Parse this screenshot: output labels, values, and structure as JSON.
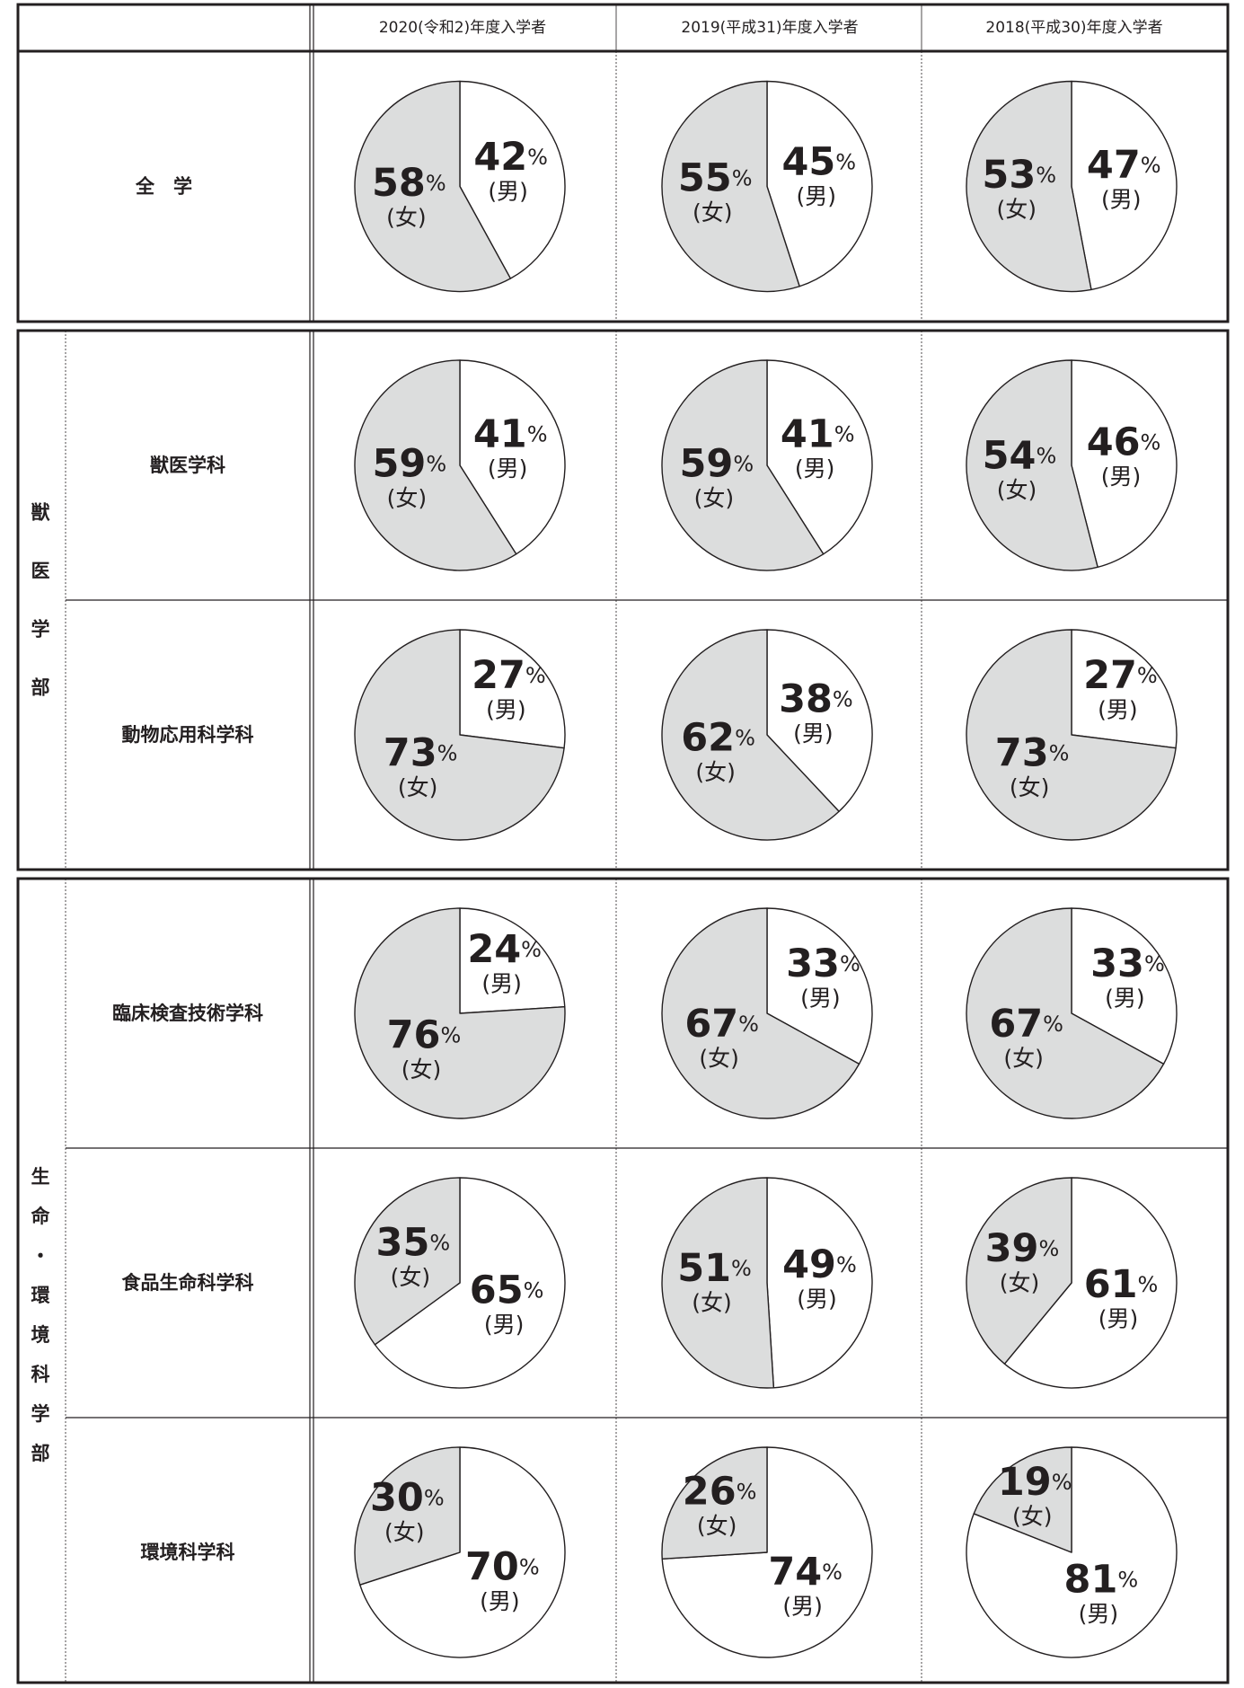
{
  "header": {
    "corner": "",
    "columns": [
      "2020(令和2)年度入学者",
      "2019(平成31)年度入学者",
      "2018(平成30)年度入学者"
    ]
  },
  "labels": {
    "female": "(女)",
    "male": "(男)",
    "percent": "%"
  },
  "colors": {
    "female": "#dcdddd",
    "male": "#ffffff",
    "line": "#231f20"
  },
  "groups": [
    {
      "name": "",
      "chars": []
    },
    {
      "name": "獣医学部",
      "chars": [
        "獣",
        "医",
        "学",
        "部"
      ]
    },
    {
      "name": "生命・環境科学部",
      "chars": [
        "生",
        "命",
        "・",
        "環",
        "境",
        "科",
        "学",
        "部"
      ]
    }
  ],
  "rows": [
    {
      "label": "全　学",
      "group": 0
    },
    {
      "label": "獣医学科",
      "group": 1
    },
    {
      "label": "動物応用科学科",
      "group": 1
    },
    {
      "label": "臨床検査技術学科",
      "group": 2
    },
    {
      "label": "食品生命科学科",
      "group": 2
    },
    {
      "label": "環境科学科",
      "group": 2
    }
  ],
  "chart_data": [
    {
      "type": "pie",
      "row": "全　学",
      "column": "2020(令和2)年度入学者",
      "female": 58,
      "male": 42
    },
    {
      "type": "pie",
      "row": "全　学",
      "column": "2019(平成31)年度入学者",
      "female": 55,
      "male": 45
    },
    {
      "type": "pie",
      "row": "全　学",
      "column": "2018(平成30)年度入学者",
      "female": 53,
      "male": 47
    },
    {
      "type": "pie",
      "row": "獣医学科",
      "column": "2020(令和2)年度入学者",
      "female": 59,
      "male": 41
    },
    {
      "type": "pie",
      "row": "獣医学科",
      "column": "2019(平成31)年度入学者",
      "female": 59,
      "male": 41
    },
    {
      "type": "pie",
      "row": "獣医学科",
      "column": "2018(平成30)年度入学者",
      "female": 54,
      "male": 46
    },
    {
      "type": "pie",
      "row": "動物応用科学科",
      "column": "2020(令和2)年度入学者",
      "female": 73,
      "male": 27
    },
    {
      "type": "pie",
      "row": "動物応用科学科",
      "column": "2019(平成31)年度入学者",
      "female": 62,
      "male": 38
    },
    {
      "type": "pie",
      "row": "動物応用科学科",
      "column": "2018(平成30)年度入学者",
      "female": 73,
      "male": 27
    },
    {
      "type": "pie",
      "row": "臨床検査技術学科",
      "column": "2020(令和2)年度入学者",
      "female": 76,
      "male": 24
    },
    {
      "type": "pie",
      "row": "臨床検査技術学科",
      "column": "2019(平成31)年度入学者",
      "female": 67,
      "male": 33
    },
    {
      "type": "pie",
      "row": "臨床検査技術学科",
      "column": "2018(平成30)年度入学者",
      "female": 67,
      "male": 33
    },
    {
      "type": "pie",
      "row": "食品生命科学科",
      "column": "2020(令和2)年度入学者",
      "female": 35,
      "male": 65
    },
    {
      "type": "pie",
      "row": "食品生命科学科",
      "column": "2019(平成31)年度入学者",
      "female": 51,
      "male": 49
    },
    {
      "type": "pie",
      "row": "食品生命科学科",
      "column": "2018(平成30)年度入学者",
      "female": 39,
      "male": 61
    },
    {
      "type": "pie",
      "row": "環境科学科",
      "column": "2020(令和2)年度入学者",
      "female": 30,
      "male": 70
    },
    {
      "type": "pie",
      "row": "環境科学科",
      "column": "2019(平成31)年度入学者",
      "female": 26,
      "male": 74
    },
    {
      "type": "pie",
      "row": "環境科学科",
      "column": "2018(平成30)年度入学者",
      "female": 19,
      "male": 81
    }
  ]
}
